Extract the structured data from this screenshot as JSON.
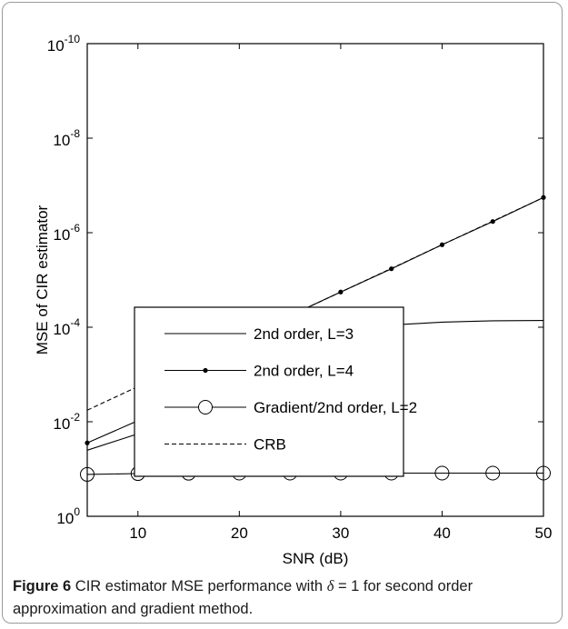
{
  "chart_data": {
    "type": "line",
    "xlabel": "SNR (dB)",
    "ylabel": "MSE of CIR estimator",
    "xlim": [
      5,
      50
    ],
    "ylim_exponent": [
      -10,
      0
    ],
    "y_scale": "log",
    "x_ticks": [
      10,
      20,
      30,
      40,
      50
    ],
    "y_tick_exponents": [
      0,
      -2,
      -4,
      -6,
      -8,
      -10
    ],
    "y_tick_base": "10",
    "grid": false,
    "legend_position": "lower-center",
    "series": [
      {
        "name": "2nd order, L=3",
        "style": "solid",
        "marker": "none",
        "color": "#000000",
        "x": [
          5,
          10,
          15,
          20,
          25,
          30,
          35,
          40,
          45,
          50
        ],
        "y": [
          0.04,
          0.018,
          0.0042,
          0.0009,
          0.00032,
          0.00015,
          9e-05,
          7.8e-05,
          7.3e-05,
          7.2e-05
        ]
      },
      {
        "name": "2nd order, L=4",
        "style": "solid",
        "marker": "dot",
        "color": "#000000",
        "x": [
          5,
          10,
          15,
          20,
          25,
          30,
          35,
          40,
          45,
          50
        ],
        "y": [
          0.028,
          0.0095,
          0.00095,
          0.00018,
          5.7e-05,
          1.8e-05,
          5.8e-06,
          1.8e-06,
          5.8e-07,
          1.8e-07
        ]
      },
      {
        "name": "Gradient/2nd order, L=2",
        "style": "solid",
        "marker": "circle",
        "color": "#000000",
        "x": [
          5,
          10,
          15,
          20,
          25,
          30,
          35,
          40,
          45,
          50
        ],
        "y": [
          0.13,
          0.125,
          0.123,
          0.122,
          0.122,
          0.122,
          0.122,
          0.122,
          0.122,
          0.122
        ]
      },
      {
        "name": "CRB",
        "style": "dashed",
        "marker": "none",
        "color": "#000000",
        "x": [
          5,
          10,
          15,
          20,
          25,
          30,
          35,
          40,
          45,
          50
        ],
        "y": [
          0.0057,
          0.0018,
          0.00057,
          0.00018,
          5.7e-05,
          1.8e-05,
          5.7e-06,
          1.8e-06,
          5.7e-07,
          1.8e-07
        ]
      }
    ]
  },
  "caption": {
    "label": "Figure 6",
    "text_before": " CIR estimator MSE performance with ",
    "symbol": "δ",
    "text_after": " = 1 for second order approximation and gradient method."
  }
}
